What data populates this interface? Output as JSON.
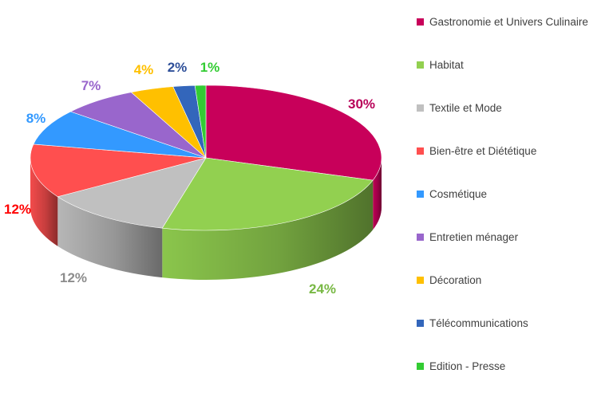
{
  "chart_data": {
    "type": "pie",
    "title": "",
    "legend_position": "right",
    "slices": [
      {
        "label": "Gastronomie et Univers Culinaire",
        "value": 30,
        "display": "30%",
        "color": "#c8005a",
        "label_color": "#b80058"
      },
      {
        "label": "Habitat",
        "value": 24,
        "display": "24%",
        "color": "#92d050",
        "label_color": "#78b844"
      },
      {
        "label": "Textile et Mode",
        "value": 12,
        "display": "12%",
        "color": "#c0c0c0",
        "label_color": "#8c8c8c"
      },
      {
        "label": "Bien-être et Diététique",
        "value": 12,
        "display": "12%",
        "color": "#ff4f4f",
        "label_color": "#ff0000"
      },
      {
        "label": "Cosmétique",
        "value": 8,
        "display": "8%",
        "color": "#3399ff",
        "label_color": "#3399ff"
      },
      {
        "label": "Entretien ménager",
        "value": 7,
        "display": "7%",
        "color": "#9966cc",
        "label_color": "#9966cc"
      },
      {
        "label": "Décoration",
        "value": 4,
        "display": "4%",
        "color": "#ffc000",
        "label_color": "#ffc000"
      },
      {
        "label": "Télécommunications",
        "value": 2,
        "display": "2%",
        "color": "#3366bb",
        "label_color": "#2e4f99"
      },
      {
        "label": "Edition - Presse",
        "value": 1,
        "display": "1%",
        "color": "#33cc33",
        "label_color": "#33cc33"
      }
    ]
  }
}
